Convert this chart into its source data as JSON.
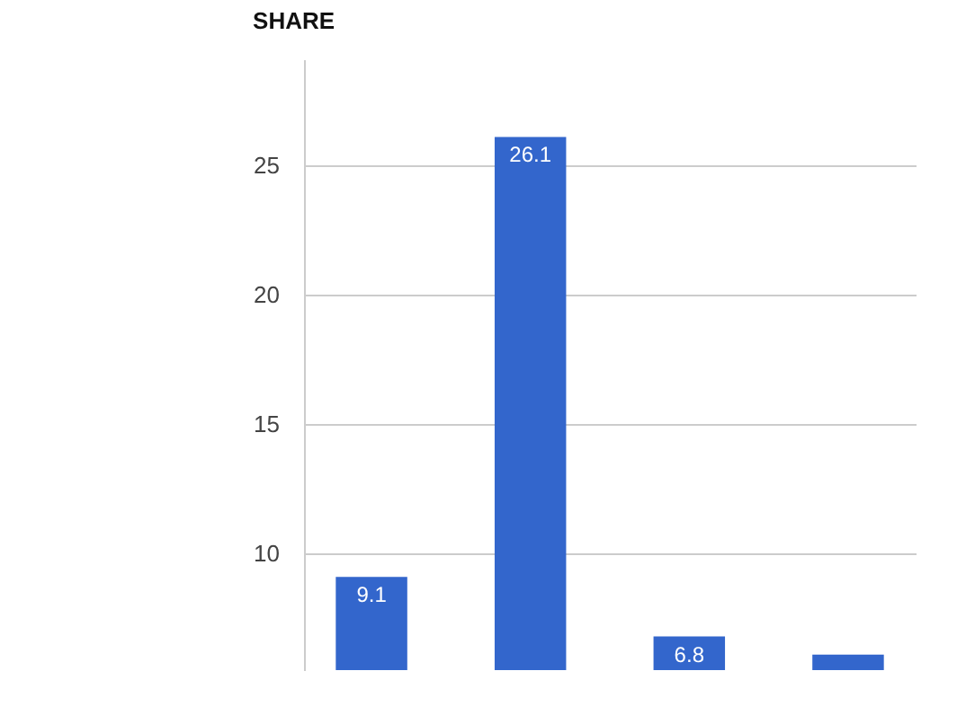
{
  "chart_data": {
    "type": "bar",
    "title": "SHARE",
    "categories": [
      null,
      null,
      null,
      null
    ],
    "values": [
      9.1,
      26.1,
      6.8,
      6.1
    ],
    "value_labels": [
      "9.1",
      "26.1",
      "6.8",
      null
    ],
    "color": "#3366cc",
    "ylim": [
      5.5,
      29.1
    ],
    "yticks": [
      10,
      15,
      20,
      25
    ],
    "grid": "y"
  }
}
